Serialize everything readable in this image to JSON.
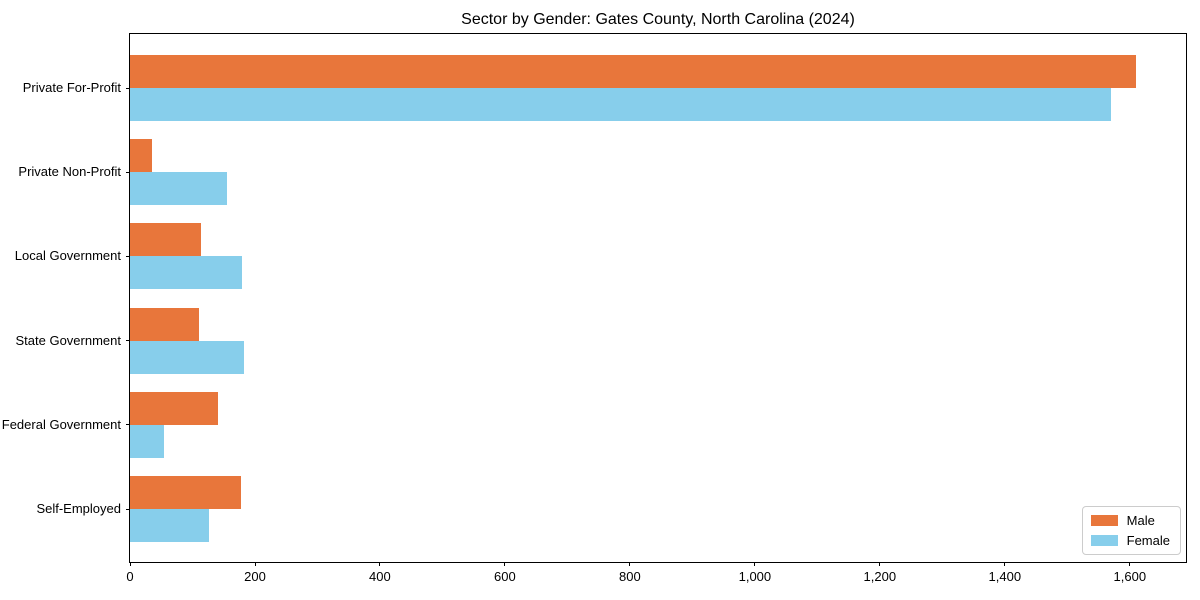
{
  "title": "Sector by Gender: Gates County, North Carolina (2024)",
  "colors": {
    "male": "#e8763b",
    "female": "#87ceeb",
    "axis": "#000000",
    "legend_border": "#cccccc",
    "background": "#ffffff"
  },
  "legend": {
    "position": "lower right",
    "entries": [
      "Male",
      "Female"
    ]
  },
  "chart_data": {
    "type": "bar",
    "orientation": "horizontal",
    "title": "Sector by Gender: Gates County, North Carolina (2024)",
    "xlabel": "",
    "ylabel": "",
    "grid": false,
    "categories": [
      "Private For-Profit",
      "Private Non-Profit",
      "Local Government",
      "State Government",
      "Federal Government",
      "Self-Employed"
    ],
    "series": [
      {
        "name": "Male",
        "color": "#e8763b",
        "values": [
          1610,
          35,
          113,
          110,
          140,
          178
        ]
      },
      {
        "name": "Female",
        "color": "#87ceeb",
        "values": [
          1570,
          155,
          179,
          183,
          55,
          127
        ]
      }
    ],
    "xlim": [
      0,
      1690
    ],
    "xticks": [
      0,
      200,
      400,
      600,
      800,
      1000,
      1200,
      1400,
      1600
    ],
    "xtick_labels": [
      "0",
      "200",
      "400",
      "600",
      "800",
      "1,000",
      "1,200",
      "1,400",
      "1,600"
    ],
    "legend_position": "lower right"
  }
}
